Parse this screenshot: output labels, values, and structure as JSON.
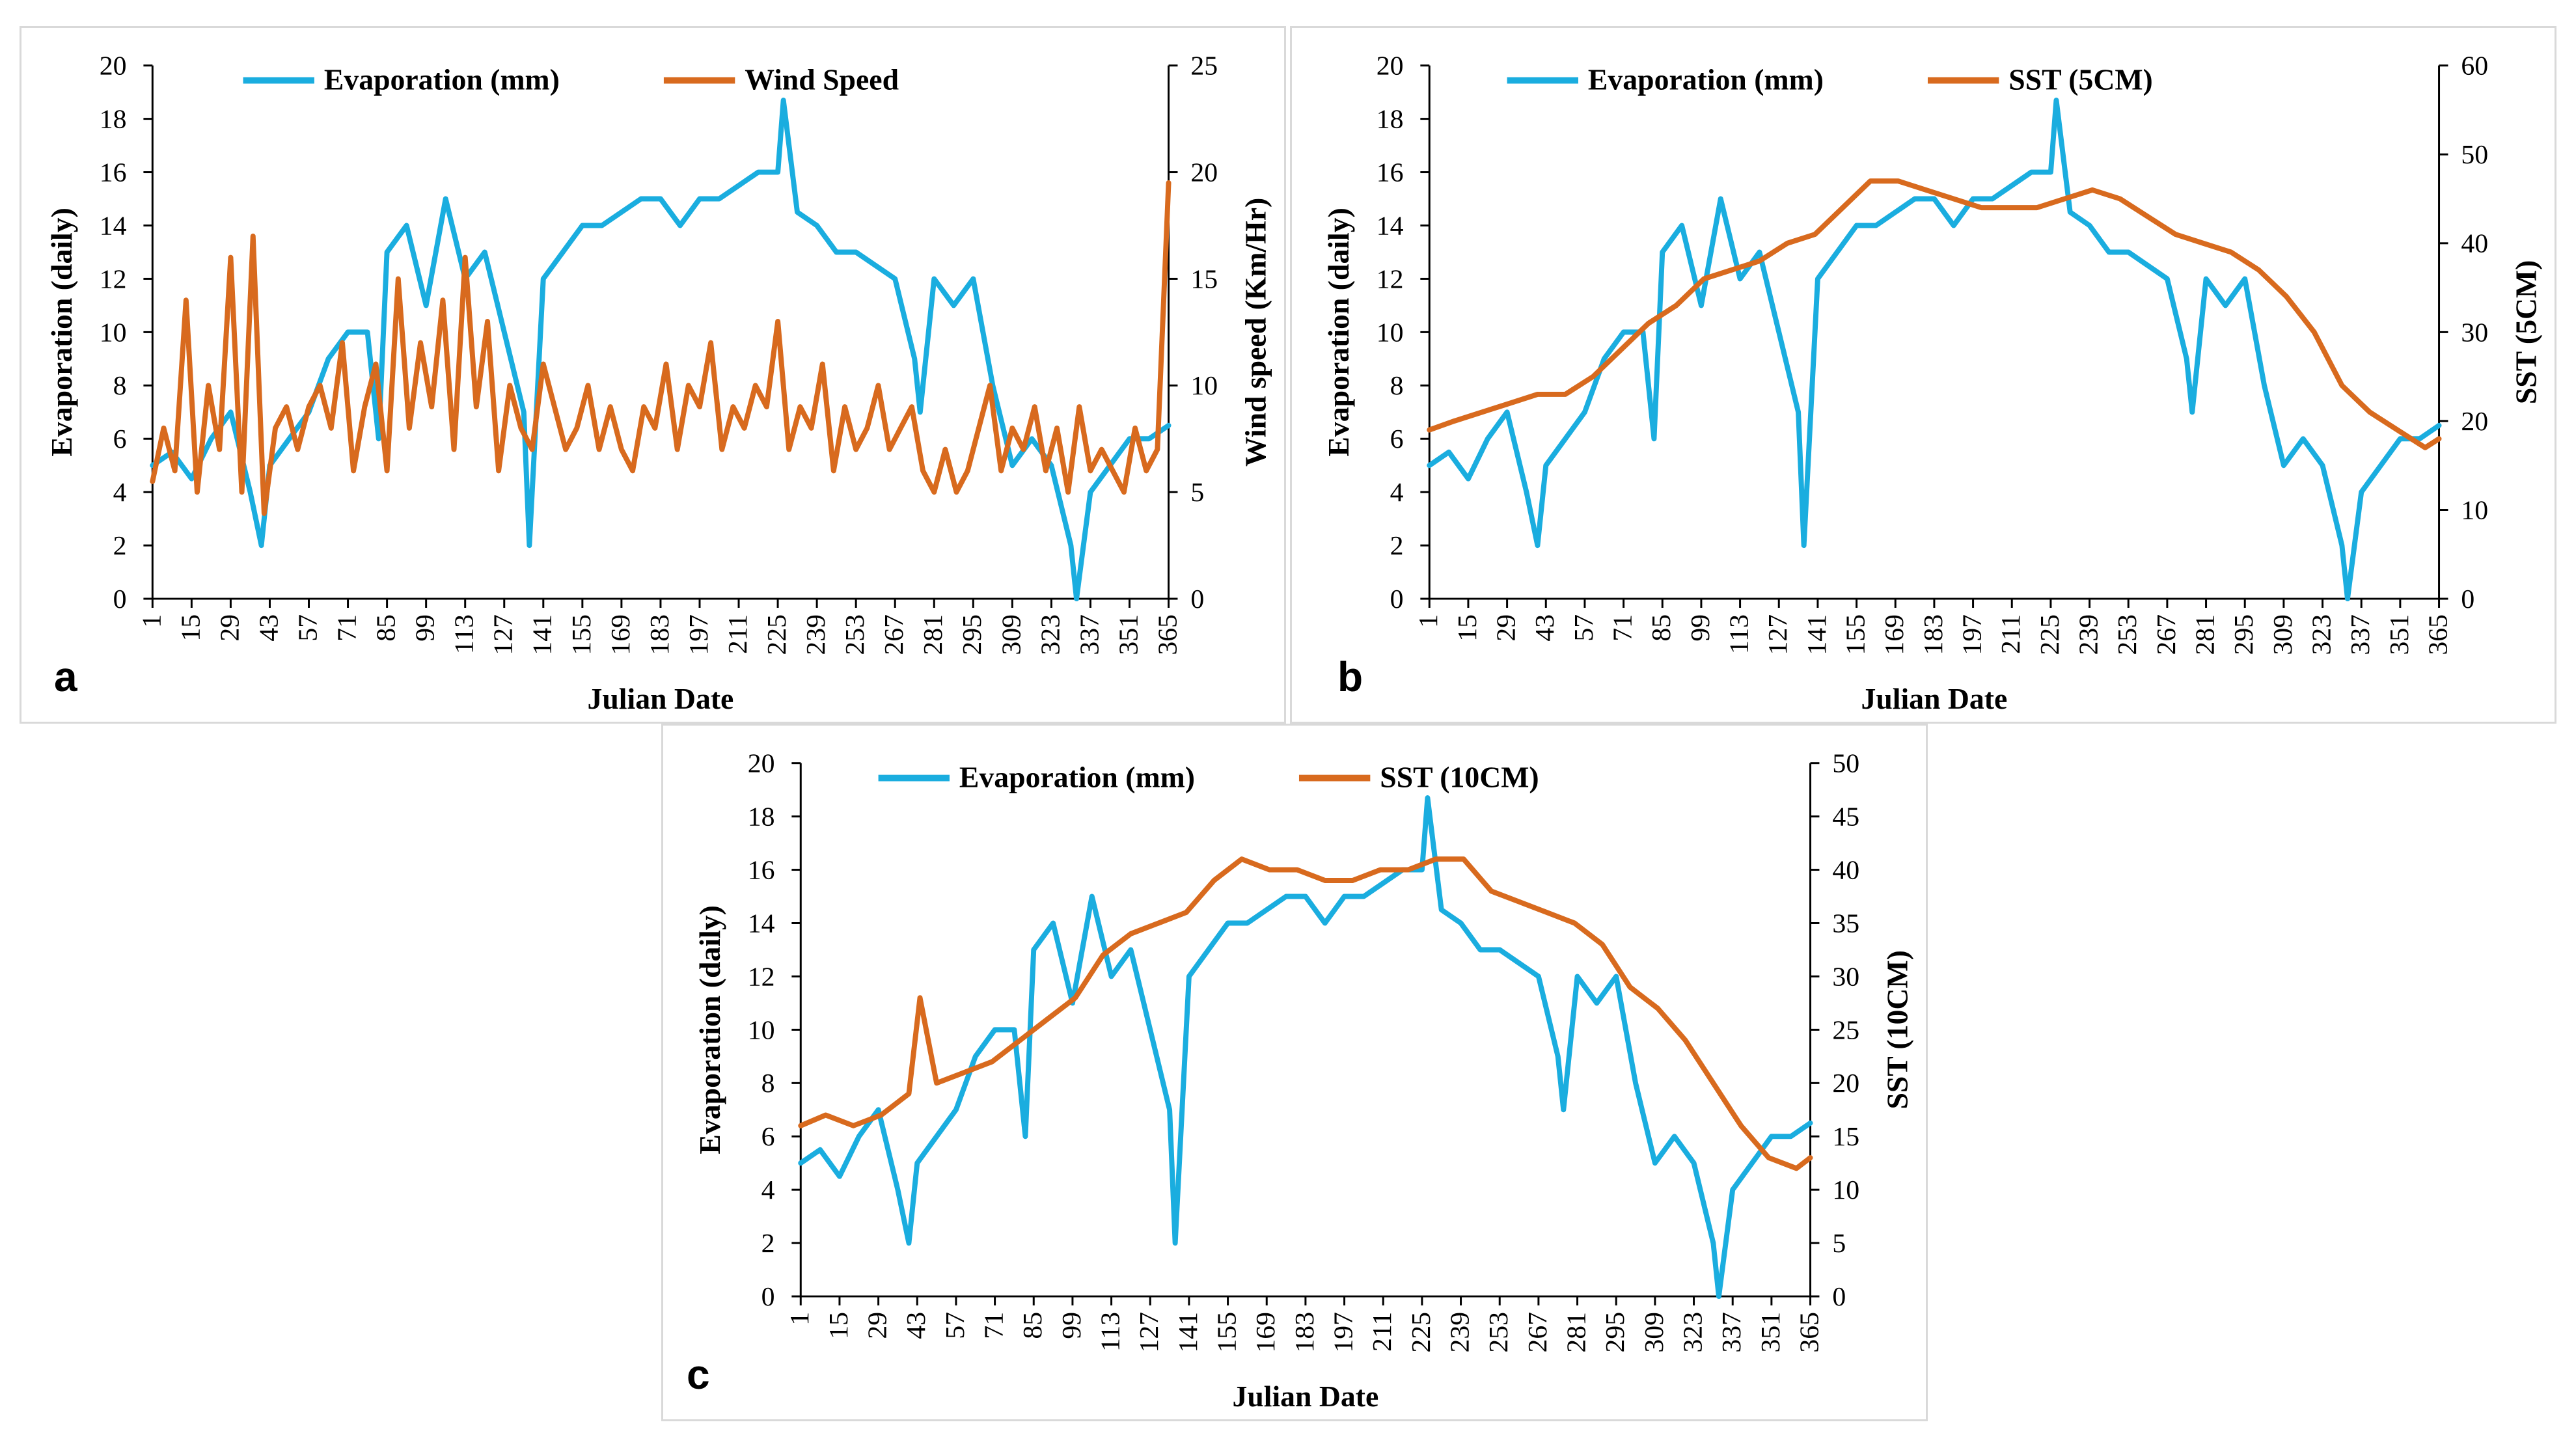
{
  "figure": {
    "series_colors": {
      "evaporation": "#1aaddf",
      "second": "#d86a1e"
    },
    "panels": [
      "a",
      "b",
      "c"
    ]
  },
  "chart_data": [
    {
      "id": "a",
      "type": "line",
      "panel_label": "a",
      "xlabel": "Julian Date",
      "ylabel": "Evaporation (daily)",
      "y2label": "Wind speed (Km/Hr)",
      "ylim": [
        0,
        20
      ],
      "y2lim": [
        0,
        25
      ],
      "yticks": [
        "0",
        "2",
        "4",
        "6",
        "8",
        "10",
        "12",
        "14",
        "16",
        "18",
        "20"
      ],
      "y2ticks": [
        "0",
        "5",
        "10",
        "15",
        "20",
        "25"
      ],
      "xticks": [
        "1",
        "15",
        "29",
        "43",
        "57",
        "71",
        "85",
        "99",
        "113",
        "127",
        "141",
        "155",
        "169",
        "183",
        "197",
        "211",
        "225",
        "239",
        "253",
        "267",
        "281",
        "295",
        "309",
        "323",
        "337",
        "351",
        "365"
      ],
      "series": [
        {
          "name": "Evaporation (mm)",
          "axis": "left",
          "color": "#1aaddf",
          "x": [
            1,
            8,
            15,
            22,
            29,
            36,
            40,
            43,
            50,
            57,
            64,
            71,
            78,
            82,
            85,
            92,
            99,
            106,
            113,
            120,
            127,
            134,
            136,
            141,
            148,
            155,
            162,
            169,
            176,
            183,
            190,
            197,
            204,
            211,
            218,
            225,
            227,
            232,
            239,
            246,
            253,
            260,
            267,
            274,
            276,
            281,
            288,
            295,
            302,
            309,
            316,
            323,
            330,
            332,
            337,
            344,
            351,
            358,
            365
          ],
          "values": [
            5,
            5.5,
            4.5,
            6,
            7,
            4,
            2,
            5,
            6,
            7,
            9,
            10,
            10,
            6,
            13,
            14,
            11,
            15,
            12,
            13,
            10,
            7,
            2,
            12,
            13,
            14,
            14,
            14.5,
            15,
            15,
            14,
            15,
            15,
            15.5,
            16,
            16,
            18.7,
            14.5,
            14,
            13,
            13,
            12.5,
            12,
            9,
            7,
            12,
            11,
            12,
            8,
            5,
            6,
            5,
            2,
            0,
            4,
            5,
            6,
            6,
            6.5
          ]
        },
        {
          "name": "Wind Speed",
          "axis": "right",
          "color": "#d86a1e",
          "x": [
            1,
            5,
            9,
            13,
            17,
            21,
            25,
            29,
            33,
            37,
            41,
            45,
            49,
            53,
            57,
            61,
            65,
            69,
            73,
            77,
            81,
            85,
            89,
            93,
            97,
            101,
            105,
            109,
            113,
            117,
            121,
            125,
            129,
            133,
            137,
            141,
            145,
            149,
            153,
            157,
            161,
            165,
            169,
            173,
            177,
            181,
            185,
            189,
            193,
            197,
            201,
            205,
            209,
            213,
            217,
            221,
            225,
            229,
            233,
            237,
            241,
            245,
            249,
            253,
            257,
            261,
            265,
            269,
            273,
            277,
            281,
            285,
            289,
            293,
            297,
            301,
            305,
            309,
            313,
            317,
            321,
            325,
            329,
            333,
            337,
            341,
            345,
            349,
            353,
            357,
            361,
            365
          ],
          "values": [
            5.5,
            8,
            6,
            14,
            5,
            10,
            7,
            16,
            5,
            17,
            4,
            8,
            9,
            7,
            9,
            10,
            8,
            12,
            6,
            9,
            11,
            6,
            15,
            8,
            12,
            9,
            14,
            7,
            16,
            9,
            13,
            6,
            10,
            8,
            7,
            11,
            9,
            7,
            8,
            10,
            7,
            9,
            7,
            6,
            9,
            8,
            11,
            7,
            10,
            9,
            12,
            7,
            9,
            8,
            10,
            9,
            13,
            7,
            9,
            8,
            11,
            6,
            9,
            7,
            8,
            10,
            7,
            8,
            9,
            6,
            5,
            7,
            5,
            6,
            8,
            10,
            6,
            8,
            7,
            9,
            6,
            8,
            5,
            9,
            6,
            7,
            6,
            5,
            8,
            6,
            7,
            19.5
          ]
        }
      ]
    },
    {
      "id": "b",
      "type": "line",
      "panel_label": "b",
      "xlabel": "Julian Date",
      "ylabel": "Evaporation (daily)",
      "y2label": "SST (5CM)",
      "ylim": [
        0,
        20
      ],
      "y2lim": [
        0,
        60
      ],
      "yticks": [
        "0",
        "2",
        "4",
        "6",
        "8",
        "10",
        "12",
        "14",
        "16",
        "18",
        "20"
      ],
      "y2ticks": [
        "0",
        "10",
        "20",
        "30",
        "40",
        "50",
        "60"
      ],
      "xticks": [
        "1",
        "15",
        "29",
        "43",
        "57",
        "71",
        "85",
        "99",
        "113",
        "127",
        "141",
        "155",
        "169",
        "183",
        "197",
        "211",
        "225",
        "239",
        "253",
        "267",
        "281",
        "295",
        "309",
        "323",
        "337",
        "351",
        "365"
      ],
      "series": [
        {
          "name": "Evaporation (mm)",
          "axis": "left",
          "color": "#1aaddf",
          "x": [
            1,
            8,
            15,
            22,
            29,
            36,
            40,
            43,
            50,
            57,
            64,
            71,
            78,
            82,
            85,
            92,
            99,
            106,
            113,
            120,
            127,
            134,
            136,
            141,
            148,
            155,
            162,
            169,
            176,
            183,
            190,
            197,
            204,
            211,
            218,
            225,
            227,
            232,
            239,
            246,
            253,
            260,
            267,
            274,
            276,
            281,
            288,
            295,
            302,
            309,
            316,
            323,
            330,
            332,
            337,
            344,
            351,
            358,
            365
          ],
          "values": [
            5,
            5.5,
            4.5,
            6,
            7,
            4,
            2,
            5,
            6,
            7,
            9,
            10,
            10,
            6,
            13,
            14,
            11,
            15,
            12,
            13,
            10,
            7,
            2,
            12,
            13,
            14,
            14,
            14.5,
            15,
            15,
            14,
            15,
            15,
            15.5,
            16,
            16,
            18.7,
            14.5,
            14,
            13,
            13,
            12.5,
            12,
            9,
            7,
            12,
            11,
            12,
            8,
            5,
            6,
            5,
            2,
            0,
            4,
            5,
            6,
            6,
            6.5
          ]
        },
        {
          "name": "SST (5CM)",
          "axis": "right",
          "color": "#d86a1e",
          "x": [
            1,
            10,
            20,
            30,
            40,
            50,
            60,
            70,
            80,
            90,
            100,
            110,
            120,
            130,
            140,
            150,
            160,
            170,
            180,
            190,
            200,
            210,
            220,
            230,
            240,
            250,
            260,
            270,
            280,
            290,
            300,
            310,
            320,
            330,
            340,
            350,
            360,
            365
          ],
          "values": [
            19,
            20,
            21,
            22,
            23,
            23,
            25,
            28,
            31,
            33,
            36,
            37,
            38,
            40,
            41,
            44,
            47,
            47,
            46,
            45,
            44,
            44,
            44,
            45,
            46,
            45,
            43,
            41,
            40,
            39,
            37,
            34,
            30,
            24,
            21,
            19,
            17,
            18
          ]
        }
      ]
    },
    {
      "id": "c",
      "type": "line",
      "panel_label": "c",
      "xlabel": "Julian Date",
      "ylabel": "Evaporation (daily)",
      "y2label": "SST (10CM)",
      "ylim": [
        0,
        20
      ],
      "y2lim": [
        0,
        50
      ],
      "yticks": [
        "0",
        "2",
        "4",
        "6",
        "8",
        "10",
        "12",
        "14",
        "16",
        "18",
        "20"
      ],
      "y2ticks": [
        "0",
        "5",
        "10",
        "15",
        "20",
        "25",
        "30",
        "35",
        "40",
        "45",
        "50"
      ],
      "xticks": [
        "1",
        "15",
        "29",
        "43",
        "57",
        "71",
        "85",
        "99",
        "113",
        "127",
        "141",
        "155",
        "169",
        "183",
        "197",
        "211",
        "225",
        "239",
        "253",
        "267",
        "281",
        "295",
        "309",
        "323",
        "337",
        "351",
        "365"
      ],
      "series": [
        {
          "name": "Evaporation (mm)",
          "axis": "left",
          "color": "#1aaddf",
          "x": [
            1,
            8,
            15,
            22,
            29,
            36,
            40,
            43,
            50,
            57,
            64,
            71,
            78,
            82,
            85,
            92,
            99,
            106,
            113,
            120,
            127,
            134,
            136,
            141,
            148,
            155,
            162,
            169,
            176,
            183,
            190,
            197,
            204,
            211,
            218,
            225,
            227,
            232,
            239,
            246,
            253,
            260,
            267,
            274,
            276,
            281,
            288,
            295,
            302,
            309,
            316,
            323,
            330,
            332,
            337,
            344,
            351,
            358,
            365
          ],
          "values": [
            5,
            5.5,
            4.5,
            6,
            7,
            4,
            2,
            5,
            6,
            7,
            9,
            10,
            10,
            6,
            13,
            14,
            11,
            15,
            12,
            13,
            10,
            7,
            2,
            12,
            13,
            14,
            14,
            14.5,
            15,
            15,
            14,
            15,
            15,
            15.5,
            16,
            16,
            18.7,
            14.5,
            14,
            13,
            13,
            12.5,
            12,
            9,
            7,
            12,
            11,
            12,
            8,
            5,
            6,
            5,
            2,
            0,
            4,
            5,
            6,
            6,
            6.5
          ]
        },
        {
          "name": "SST (10CM)",
          "axis": "right",
          "color": "#d86a1e",
          "x": [
            1,
            10,
            20,
            30,
            40,
            44,
            50,
            60,
            70,
            80,
            90,
            100,
            110,
            120,
            130,
            140,
            150,
            160,
            170,
            180,
            190,
            200,
            210,
            220,
            230,
            240,
            250,
            260,
            270,
            280,
            290,
            300,
            310,
            320,
            330,
            340,
            350,
            360,
            365
          ],
          "values": [
            16,
            17,
            16,
            17,
            19,
            28,
            20,
            21,
            22,
            24,
            26,
            28,
            32,
            34,
            35,
            36,
            39,
            41,
            40,
            40,
            39,
            39,
            40,
            40,
            41,
            41,
            38,
            37,
            36,
            35,
            33,
            29,
            27,
            24,
            20,
            16,
            13,
            12,
            13
          ]
        }
      ]
    }
  ]
}
